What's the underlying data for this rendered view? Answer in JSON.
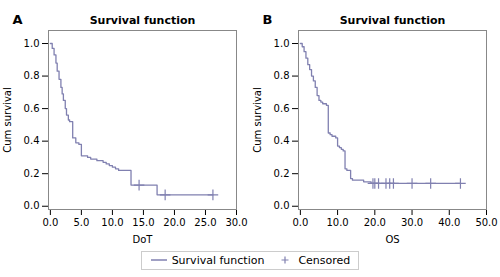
{
  "chart_data": [
    {
      "type": "line",
      "title": "Survival function",
      "annotations": [
        "A"
      ],
      "xlabel": "DoT",
      "ylabel": "Cum survival",
      "xlim": [
        -0.3,
        30.0
      ],
      "ylim": [
        -0.02,
        1.08
      ],
      "xticks": [
        {
          "value": 0.0,
          "label": "0.0"
        },
        {
          "value": 5.0,
          "label": "5.0"
        },
        {
          "value": 10.0,
          "label": "10.0"
        },
        {
          "value": 15.0,
          "label": "15.0"
        },
        {
          "value": 20.0,
          "label": "20.0"
        },
        {
          "value": 25.0,
          "label": "25.0"
        },
        {
          "value": 30.0,
          "label": "30.0"
        }
      ],
      "yticks": [
        {
          "value": 0.0,
          "label": "0.0"
        },
        0.2,
        0.4,
        0.6,
        0.8,
        {
          "value": 1.0,
          "label": "1.0"
        }
      ],
      "grid": false,
      "legend": "bottom",
      "series": [
        {
          "name": "Survival function",
          "color": "#8080b0",
          "line_style": "step",
          "x": [
            0,
            0.3,
            0.6,
            0.9,
            1.1,
            1.4,
            1.7,
            1.9,
            2.1,
            2.4,
            2.6,
            2.9,
            3.1,
            3.6,
            4.1,
            4.6,
            5.0,
            5.5,
            6.0,
            6.5,
            7.0,
            7.5,
            8.0,
            8.5,
            9.0,
            9.5,
            10.0,
            10.5,
            11.0,
            11.5,
            12.0,
            12.5,
            13.0,
            13.5,
            14.0,
            14.3,
            14.7,
            15.2,
            16.0,
            17.2,
            18.0,
            18.5,
            19.2,
            26.2
          ],
          "values": [
            1.0,
            0.97,
            0.93,
            0.88,
            0.83,
            0.78,
            0.73,
            0.69,
            0.65,
            0.6,
            0.56,
            0.53,
            0.52,
            0.42,
            0.39,
            0.38,
            0.31,
            0.31,
            0.3,
            0.29,
            0.29,
            0.28,
            0.28,
            0.27,
            0.26,
            0.25,
            0.24,
            0.23,
            0.22,
            0.22,
            0.22,
            0.22,
            0.13,
            0.13,
            0.13,
            0.13,
            0.13,
            0.13,
            0.13,
            0.07,
            0.07,
            0.07,
            0.07,
            0.07
          ]
        },
        {
          "name": "Censored",
          "color": "#8080b0",
          "type": "scatter",
          "marker": "plus",
          "x": [
            14.3,
            18.5,
            26.2
          ],
          "values": [
            0.13,
            0.07,
            0.07
          ]
        }
      ]
    },
    {
      "type": "line",
      "title": "Survival function",
      "annotations": [
        "B"
      ],
      "xlabel": "OS",
      "ylabel": "Cum survival",
      "xlim": [
        -0.5,
        50.0
      ],
      "ylim": [
        -0.02,
        1.08
      ],
      "xticks": [
        {
          "value": 0.0,
          "label": "0.0"
        },
        {
          "value": 10.0,
          "label": "10.0"
        },
        {
          "value": 20.0,
          "label": "20.0"
        },
        {
          "value": 30.0,
          "label": "30.0"
        },
        {
          "value": 40.0,
          "label": "40.0"
        },
        {
          "value": 50.0,
          "label": "50.0"
        }
      ],
      "yticks": [
        {
          "value": 0.0,
          "label": "0.0"
        },
        0.2,
        0.4,
        0.6,
        0.8,
        {
          "value": 1.0,
          "label": "1.0"
        }
      ],
      "grid": false,
      "legend": "bottom",
      "series": [
        {
          "name": "Survival function",
          "color": "#8080b0",
          "line_style": "step",
          "x": [
            0,
            0.5,
            1.0,
            1.5,
            2.0,
            2.5,
            3.0,
            3.5,
            4.0,
            4.5,
            5.0,
            5.5,
            6.0,
            6.5,
            7.0,
            7.5,
            8.0,
            8.5,
            9.0,
            9.5,
            10.0,
            10.5,
            11.0,
            11.5,
            12.0,
            12.5,
            13.0,
            13.5,
            14.0,
            14.5,
            15.0,
            16.0,
            17.0,
            18.0,
            18.5,
            19.0,
            19.5,
            20.0,
            21.0,
            22.0,
            23.0,
            24.0,
            25.0,
            30.0,
            35.0,
            43.0
          ],
          "values": [
            1.0,
            0.98,
            0.95,
            0.91,
            0.87,
            0.84,
            0.8,
            0.77,
            0.73,
            0.68,
            0.65,
            0.64,
            0.63,
            0.63,
            0.62,
            0.45,
            0.44,
            0.43,
            0.43,
            0.42,
            0.37,
            0.36,
            0.35,
            0.34,
            0.23,
            0.22,
            0.22,
            0.17,
            0.16,
            0.16,
            0.16,
            0.16,
            0.15,
            0.15,
            0.15,
            0.14,
            0.14,
            0.14,
            0.14,
            0.14,
            0.14,
            0.14,
            0.14,
            0.14,
            0.14,
            0.14
          ]
        },
        {
          "name": "Censored",
          "color": "#8080b0",
          "type": "scatter",
          "marker": "plus",
          "x": [
            19.5,
            20.0,
            21.0,
            23.0,
            24.0,
            25.0,
            30.0,
            35.0,
            43.0
          ],
          "values": [
            0.14,
            0.14,
            0.14,
            0.14,
            0.14,
            0.14,
            0.14,
            0.14,
            0.14
          ]
        }
      ]
    }
  ]
}
